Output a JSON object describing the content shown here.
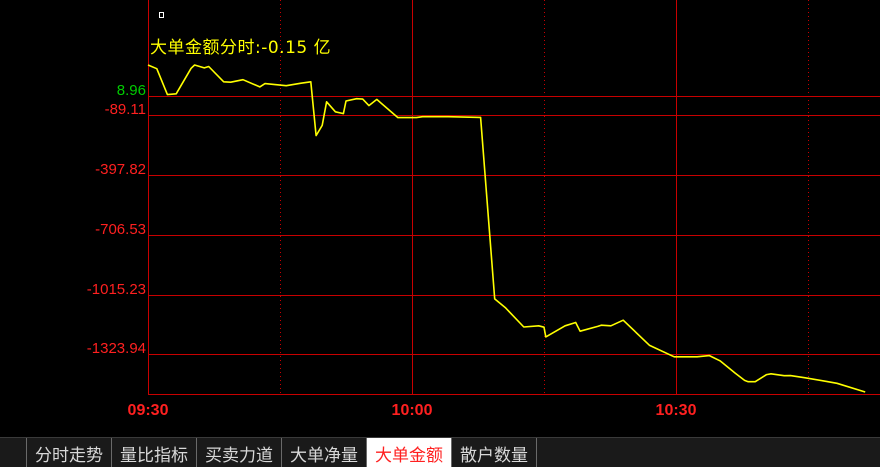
{
  "indicator": {
    "label": "大单金额分时:-0.15 亿",
    "color": "#ffff00"
  },
  "chart_data": {
    "type": "line",
    "title": "大单金额分时",
    "ylim": [
      -1600,
      170
    ],
    "yticks": [
      {
        "value": 8.96,
        "label": "8.96",
        "color": "#00cc00"
      },
      {
        "value": -89.11,
        "label": "-89.11",
        "color": "#ff2020"
      },
      {
        "value": -397.82,
        "label": "-397.82",
        "color": "#ff2020"
      },
      {
        "value": -706.53,
        "label": "-706.53",
        "color": "#ff2020"
      },
      {
        "value": -1015.23,
        "label": "-1015.23",
        "color": "#ff2020"
      },
      {
        "value": -1323.94,
        "label": "-1323.94",
        "color": "#ff2020"
      }
    ],
    "xticks": [
      {
        "minute": 0,
        "label": "09:30"
      },
      {
        "minute": 30,
        "label": "10:00"
      },
      {
        "minute": 60,
        "label": "10:30"
      }
    ],
    "x_range_minutes": [
      0,
      81.5
    ],
    "grid": true,
    "series": [
      {
        "color": "#ffff00",
        "x": [
          0,
          1,
          2.2,
          3.2,
          4.9,
          5.3,
          6.4,
          6.9,
          8.6,
          9.4,
          10.8,
          12.7,
          13.3,
          15.7,
          17.4,
          18.5,
          19.1,
          19.8,
          20.3,
          21.3,
          22.2,
          22.5,
          23.7,
          24.4,
          25.1,
          26.0,
          28.4,
          28.6,
          30.5,
          31.2,
          33.6,
          34.1,
          37.7,
          37.8,
          39.4,
          40.6,
          42.7,
          44.4,
          45.0,
          45.2,
          47.4,
          48.6,
          49.1,
          51.1,
          51.5,
          52.6,
          54.0,
          57.0,
          59.8,
          61.1,
          62.4,
          63.8,
          65.0,
          66.7,
          67.8,
          68.2,
          69.0,
          70.3,
          70.8,
          72.3,
          73.0,
          74.6,
          77.1,
          78.3,
          81.5
        ],
        "y": [
          171,
          152,
          18,
          22,
          154,
          171,
          156,
          163,
          84,
          82,
          95,
          58,
          75,
          64,
          77,
          84,
          -194,
          -141,
          -19,
          -71,
          -80,
          -15,
          -3,
          -5,
          -39,
          -7,
          -101,
          -101,
          -101,
          -96,
          -96,
          -96,
          -100,
          -100,
          -1038,
          -1083,
          -1183,
          -1177,
          -1184,
          -1234,
          -1177,
          -1160,
          -1205,
          -1180,
          -1174,
          -1177,
          -1148,
          -1278,
          -1337,
          -1337,
          -1337,
          -1331,
          -1358,
          -1421,
          -1459,
          -1466,
          -1466,
          -1429,
          -1425,
          -1435,
          -1434,
          -1445,
          -1464,
          -1474,
          -1519
        ]
      }
    ]
  },
  "tabs": [
    {
      "label": "分时走势",
      "active": false
    },
    {
      "label": "量比指标",
      "active": false
    },
    {
      "label": "买卖力道",
      "active": false
    },
    {
      "label": "大单净量",
      "active": false
    },
    {
      "label": "大单金额",
      "active": true
    },
    {
      "label": "散户数量",
      "active": false
    }
  ]
}
